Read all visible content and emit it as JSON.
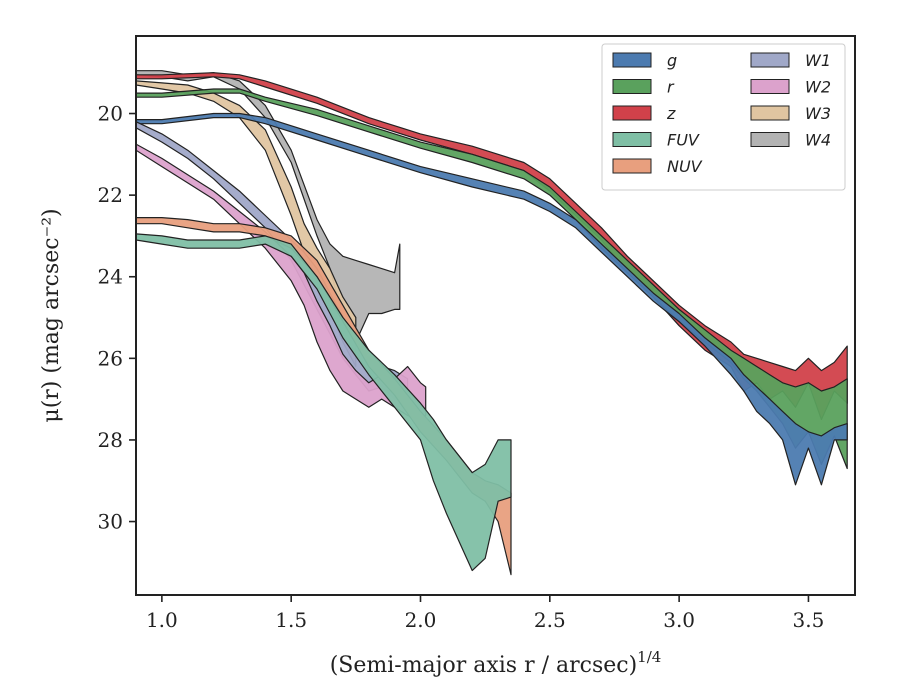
{
  "chart_data": {
    "type": "area",
    "xlabel": "(Semi-major axis r / arcsec)",
    "xlabel_exp": "1/4",
    "ylabel": "μ(r) (mag arcsec⁻²)",
    "xlim": [
      0.9,
      3.68
    ],
    "ylim": [
      31.8,
      18.1
    ],
    "y_inverted": true,
    "xticks": [
      1.0,
      1.5,
      2.0,
      2.5,
      3.0,
      3.5
    ],
    "xtick_labels": [
      "1.0",
      "1.5",
      "2.0",
      "2.5",
      "3.0",
      "3.5"
    ],
    "yticks": [
      20,
      22,
      24,
      26,
      28,
      30
    ],
    "ytick_labels": [
      "20",
      "22",
      "24",
      "26",
      "28",
      "30"
    ],
    "grid": false,
    "legend": {
      "position": "top-right",
      "columns": 2
    },
    "series": [
      {
        "name": "W4",
        "color": "#b3b3b3",
        "x": [
          0.9,
          1.0,
          1.1,
          1.2,
          1.3,
          1.4,
          1.5,
          1.6,
          1.65,
          1.7,
          1.75,
          1.8,
          1.85,
          1.9,
          1.92
        ],
        "y_low": [
          18.95,
          18.95,
          19.05,
          19.0,
          19.2,
          19.8,
          20.9,
          22.6,
          23.2,
          23.5,
          23.6,
          23.7,
          23.8,
          23.9,
          23.2
        ],
        "y_high": [
          19.05,
          19.1,
          19.2,
          19.1,
          19.4,
          20.1,
          21.2,
          23.0,
          23.8,
          25.0,
          25.6,
          24.9,
          24.9,
          24.8,
          24.8
        ]
      },
      {
        "name": "W3",
        "color": "#e0c5a1",
        "x": [
          0.9,
          1.0,
          1.1,
          1.2,
          1.3,
          1.4,
          1.5,
          1.55,
          1.6,
          1.65,
          1.7,
          1.75
        ],
        "y_low": [
          19.2,
          19.25,
          19.3,
          19.5,
          19.8,
          20.4,
          21.8,
          22.7,
          23.3,
          23.8,
          24.5,
          25.0
        ],
        "y_high": [
          19.3,
          19.4,
          19.5,
          19.7,
          20.1,
          20.9,
          22.5,
          23.4,
          24.2,
          24.8,
          25.6,
          26.2
        ]
      },
      {
        "name": "z",
        "color": "#d1414a",
        "x": [
          0.9,
          1.0,
          1.2,
          1.3,
          1.4,
          1.6,
          1.8,
          2.0,
          2.2,
          2.4,
          2.5,
          2.6,
          2.7,
          2.8,
          2.9,
          3.0,
          3.1,
          3.2,
          3.25,
          3.3,
          3.35,
          3.4,
          3.45,
          3.5,
          3.55,
          3.6,
          3.65
        ],
        "y_low": [
          19.05,
          19.05,
          19.0,
          19.05,
          19.2,
          19.6,
          20.1,
          20.5,
          20.8,
          21.2,
          21.6,
          22.2,
          22.8,
          23.5,
          24.1,
          24.7,
          25.2,
          25.6,
          25.9,
          26.0,
          26.1,
          26.2,
          26.3,
          26.0,
          26.3,
          26.1,
          25.7
        ],
        "y_high": [
          19.15,
          19.15,
          19.1,
          19.15,
          19.35,
          19.75,
          20.25,
          20.65,
          21.0,
          21.4,
          21.9,
          22.5,
          23.1,
          23.9,
          24.5,
          25.2,
          25.8,
          26.2,
          26.8,
          26.6,
          27.0,
          26.8,
          27.2,
          26.6,
          27.5,
          26.8,
          27.1
        ]
      },
      {
        "name": "r",
        "color": "#5aa15d",
        "x": [
          0.9,
          1.0,
          1.2,
          1.3,
          1.4,
          1.6,
          1.8,
          2.0,
          2.2,
          2.4,
          2.5,
          2.6,
          2.7,
          2.8,
          2.9,
          3.0,
          3.1,
          3.2,
          3.25,
          3.3,
          3.35,
          3.4,
          3.45,
          3.5,
          3.55,
          3.6,
          3.65
        ],
        "y_low": [
          19.5,
          19.5,
          19.4,
          19.4,
          19.6,
          19.9,
          20.3,
          20.7,
          21.0,
          21.4,
          21.8,
          22.4,
          23.0,
          23.6,
          24.2,
          24.8,
          25.3,
          25.8,
          26.0,
          26.2,
          26.4,
          26.6,
          26.7,
          26.6,
          26.8,
          26.7,
          26.5
        ],
        "y_high": [
          19.6,
          19.6,
          19.5,
          19.5,
          19.7,
          20.05,
          20.45,
          20.85,
          21.2,
          21.6,
          22.0,
          22.6,
          23.3,
          23.9,
          24.5,
          25.1,
          25.6,
          26.1,
          26.5,
          26.8,
          27.2,
          27.6,
          28.2,
          27.8,
          28.6,
          27.9,
          28.7
        ]
      },
      {
        "name": "g",
        "color": "#4c7bb0",
        "x": [
          0.9,
          1.0,
          1.2,
          1.3,
          1.4,
          1.6,
          1.8,
          2.0,
          2.2,
          2.4,
          2.5,
          2.6,
          2.7,
          2.8,
          2.9,
          3.0,
          3.1,
          3.2,
          3.25,
          3.3,
          3.35,
          3.4,
          3.45,
          3.5,
          3.55,
          3.6,
          3.65
        ],
        "y_low": [
          20.15,
          20.15,
          20.0,
          20.0,
          20.1,
          20.5,
          20.9,
          21.3,
          21.6,
          21.9,
          22.2,
          22.6,
          23.2,
          23.8,
          24.4,
          24.9,
          25.5,
          26.0,
          26.4,
          26.7,
          27.0,
          27.3,
          27.6,
          27.8,
          27.9,
          27.7,
          27.6
        ],
        "y_high": [
          20.25,
          20.25,
          20.1,
          20.1,
          20.25,
          20.65,
          21.05,
          21.45,
          21.8,
          22.1,
          22.4,
          22.8,
          23.4,
          24.0,
          24.6,
          25.1,
          25.7,
          26.4,
          26.8,
          27.3,
          27.6,
          28.0,
          29.1,
          28.2,
          29.1,
          28.0,
          28.0
        ]
      },
      {
        "name": "W1",
        "color": "#a0a8c8",
        "x": [
          0.9,
          1.0,
          1.1,
          1.2,
          1.3,
          1.4,
          1.5,
          1.55,
          1.6,
          1.65,
          1.7,
          1.75,
          1.8,
          1.85,
          1.9,
          1.95
        ],
        "y_low": [
          20.2,
          20.5,
          20.9,
          21.4,
          21.9,
          22.5,
          23.1,
          23.4,
          23.8,
          24.4,
          25.0,
          25.6,
          26.0,
          26.2,
          26.3,
          26.5
        ],
        "y_high": [
          20.35,
          20.7,
          21.1,
          21.6,
          22.2,
          22.8,
          23.6,
          24.2,
          24.8,
          25.4,
          26.0,
          26.4,
          26.8,
          26.7,
          27.0,
          27.0
        ]
      },
      {
        "name": "W2",
        "color": "#dca2cc",
        "x": [
          0.9,
          1.0,
          1.1,
          1.2,
          1.3,
          1.4,
          1.5,
          1.55,
          1.6,
          1.65,
          1.7,
          1.75,
          1.8,
          1.85,
          1.9,
          1.95,
          2.0,
          2.02
        ],
        "y_low": [
          20.75,
          21.1,
          21.5,
          21.9,
          22.4,
          22.9,
          23.5,
          23.9,
          24.6,
          25.2,
          25.9,
          26.3,
          26.6,
          26.4,
          26.5,
          26.2,
          26.6,
          26.7
        ],
        "y_high": [
          20.9,
          21.3,
          21.7,
          22.1,
          22.7,
          23.3,
          24.1,
          24.7,
          25.6,
          26.3,
          26.8,
          27.0,
          27.2,
          27.0,
          27.2,
          27.4,
          27.5,
          27.4
        ]
      },
      {
        "name": "NUV",
        "color": "#e89f7e",
        "x": [
          0.9,
          1.0,
          1.1,
          1.2,
          1.3,
          1.4,
          1.5,
          1.6,
          1.7,
          1.8,
          1.9,
          2.0,
          2.1,
          2.2,
          2.25,
          2.3,
          2.35
        ],
        "y_low": [
          22.55,
          22.55,
          22.6,
          22.7,
          22.7,
          22.8,
          23.0,
          23.6,
          24.7,
          25.8,
          26.5,
          27.3,
          28.0,
          28.8,
          29.0,
          29.1,
          29.3
        ],
        "y_high": [
          22.7,
          22.7,
          22.8,
          22.9,
          22.9,
          23.0,
          23.3,
          24.0,
          25.1,
          26.2,
          26.9,
          27.8,
          28.5,
          29.3,
          29.5,
          30.0,
          31.3
        ]
      },
      {
        "name": "FUV",
        "color": "#7fbfa5",
        "x": [
          0.9,
          1.0,
          1.1,
          1.2,
          1.3,
          1.4,
          1.5,
          1.6,
          1.7,
          1.8,
          1.9,
          2.0,
          2.05,
          2.1,
          2.15,
          2.2,
          2.25,
          2.3,
          2.35
        ],
        "y_low": [
          22.95,
          23.0,
          23.1,
          23.1,
          23.1,
          23.0,
          23.2,
          24.0,
          25.0,
          25.8,
          26.4,
          27.1,
          27.5,
          28.0,
          28.4,
          28.8,
          28.6,
          28.0,
          28.0
        ],
        "y_high": [
          23.1,
          23.2,
          23.3,
          23.3,
          23.3,
          23.2,
          23.5,
          24.3,
          25.5,
          26.4,
          27.2,
          28.0,
          29.0,
          29.8,
          30.5,
          31.2,
          30.9,
          29.5,
          29.4
        ]
      }
    ],
    "legend_order": [
      "g",
      "r",
      "z",
      "FUV",
      "NUV",
      "W1",
      "W2",
      "W3",
      "W4"
    ]
  }
}
